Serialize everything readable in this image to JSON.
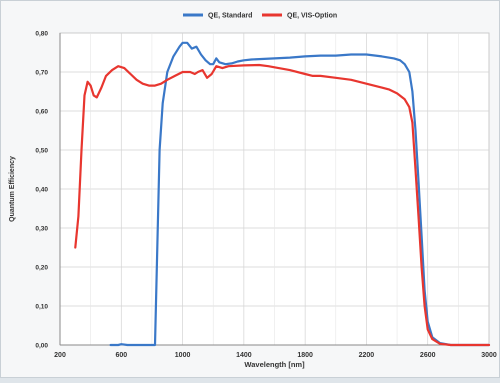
{
  "chart_data": {
    "type": "line",
    "title": "",
    "xlabel": "Wavelength [nm]",
    "ylabel": "Quantum Efficiency",
    "xlim": [
      200,
      3000
    ],
    "ylim": [
      0,
      0.8
    ],
    "x_ticks": [
      "200",
      "600",
      "1000",
      "1400",
      "1800",
      "2200",
      "2600",
      "3000"
    ],
    "x_tick_values": [
      200,
      600,
      1000,
      1400,
      1800,
      2200,
      2600,
      3000
    ],
    "y_ticks": [
      "0,00",
      "0,10",
      "0,20",
      "0,30",
      "0,40",
      "0,50",
      "0,60",
      "0,70",
      "0,80"
    ],
    "y_tick_values": [
      0,
      0.1,
      0.2,
      0.3,
      0.4,
      0.5,
      0.6,
      0.7,
      0.8
    ],
    "grid": true,
    "legend_position": "top-center",
    "series": [
      {
        "name": "QE, Standard",
        "color": "#3a78c8",
        "points": [
          [
            530,
            0.0
          ],
          [
            580,
            0.0
          ],
          [
            600,
            0.002
          ],
          [
            640,
            0.0
          ],
          [
            800,
            0.0
          ],
          [
            820,
            0.0
          ],
          [
            835,
            0.25
          ],
          [
            850,
            0.5
          ],
          [
            870,
            0.62
          ],
          [
            900,
            0.7
          ],
          [
            940,
            0.74
          ],
          [
            980,
            0.765
          ],
          [
            1000,
            0.775
          ],
          [
            1030,
            0.775
          ],
          [
            1060,
            0.76
          ],
          [
            1090,
            0.765
          ],
          [
            1120,
            0.745
          ],
          [
            1150,
            0.73
          ],
          [
            1180,
            0.72
          ],
          [
            1200,
            0.72
          ],
          [
            1220,
            0.735
          ],
          [
            1240,
            0.725
          ],
          [
            1280,
            0.72
          ],
          [
            1320,
            0.722
          ],
          [
            1360,
            0.727
          ],
          [
            1400,
            0.73
          ],
          [
            1450,
            0.732
          ],
          [
            1500,
            0.733
          ],
          [
            1600,
            0.735
          ],
          [
            1700,
            0.737
          ],
          [
            1800,
            0.74
          ],
          [
            1900,
            0.742
          ],
          [
            2000,
            0.742
          ],
          [
            2100,
            0.745
          ],
          [
            2200,
            0.745
          ],
          [
            2300,
            0.74
          ],
          [
            2380,
            0.735
          ],
          [
            2420,
            0.73
          ],
          [
            2450,
            0.72
          ],
          [
            2480,
            0.7
          ],
          [
            2500,
            0.65
          ],
          [
            2520,
            0.55
          ],
          [
            2540,
            0.42
          ],
          [
            2560,
            0.28
          ],
          [
            2580,
            0.14
          ],
          [
            2600,
            0.06
          ],
          [
            2630,
            0.02
          ],
          [
            2680,
            0.005
          ],
          [
            2750,
            0.0
          ],
          [
            3000,
            0.0
          ]
        ]
      },
      {
        "name": "QE, VIS-Option",
        "color": "#e8362f",
        "points": [
          [
            300,
            0.25
          ],
          [
            320,
            0.33
          ],
          [
            340,
            0.5
          ],
          [
            360,
            0.64
          ],
          [
            380,
            0.675
          ],
          [
            400,
            0.665
          ],
          [
            420,
            0.64
          ],
          [
            440,
            0.635
          ],
          [
            470,
            0.66
          ],
          [
            500,
            0.69
          ],
          [
            540,
            0.705
          ],
          [
            580,
            0.715
          ],
          [
            620,
            0.71
          ],
          [
            660,
            0.695
          ],
          [
            700,
            0.68
          ],
          [
            740,
            0.67
          ],
          [
            780,
            0.665
          ],
          [
            820,
            0.665
          ],
          [
            860,
            0.67
          ],
          [
            900,
            0.68
          ],
          [
            950,
            0.69
          ],
          [
            1000,
            0.7
          ],
          [
            1050,
            0.7
          ],
          [
            1080,
            0.695
          ],
          [
            1100,
            0.7
          ],
          [
            1130,
            0.705
          ],
          [
            1160,
            0.685
          ],
          [
            1190,
            0.695
          ],
          [
            1220,
            0.715
          ],
          [
            1260,
            0.71
          ],
          [
            1300,
            0.715
          ],
          [
            1400,
            0.717
          ],
          [
            1500,
            0.718
          ],
          [
            1560,
            0.715
          ],
          [
            1600,
            0.712
          ],
          [
            1700,
            0.705
          ],
          [
            1800,
            0.695
          ],
          [
            1850,
            0.69
          ],
          [
            1900,
            0.69
          ],
          [
            2000,
            0.685
          ],
          [
            2100,
            0.68
          ],
          [
            2200,
            0.67
          ],
          [
            2300,
            0.66
          ],
          [
            2350,
            0.655
          ],
          [
            2400,
            0.645
          ],
          [
            2450,
            0.63
          ],
          [
            2480,
            0.61
          ],
          [
            2500,
            0.57
          ],
          [
            2520,
            0.45
          ],
          [
            2540,
            0.33
          ],
          [
            2560,
            0.2
          ],
          [
            2580,
            0.1
          ],
          [
            2600,
            0.04
          ],
          [
            2630,
            0.015
          ],
          [
            2680,
            0.003
          ],
          [
            2750,
            0.0
          ],
          [
            3000,
            0.0
          ]
        ]
      }
    ]
  },
  "colors": {
    "frame_bg": "#f6f7f8",
    "plot_bg": "#ffffff",
    "grid": "#d3d3d3",
    "axis": "#8a8a8a",
    "text": "#333333"
  }
}
